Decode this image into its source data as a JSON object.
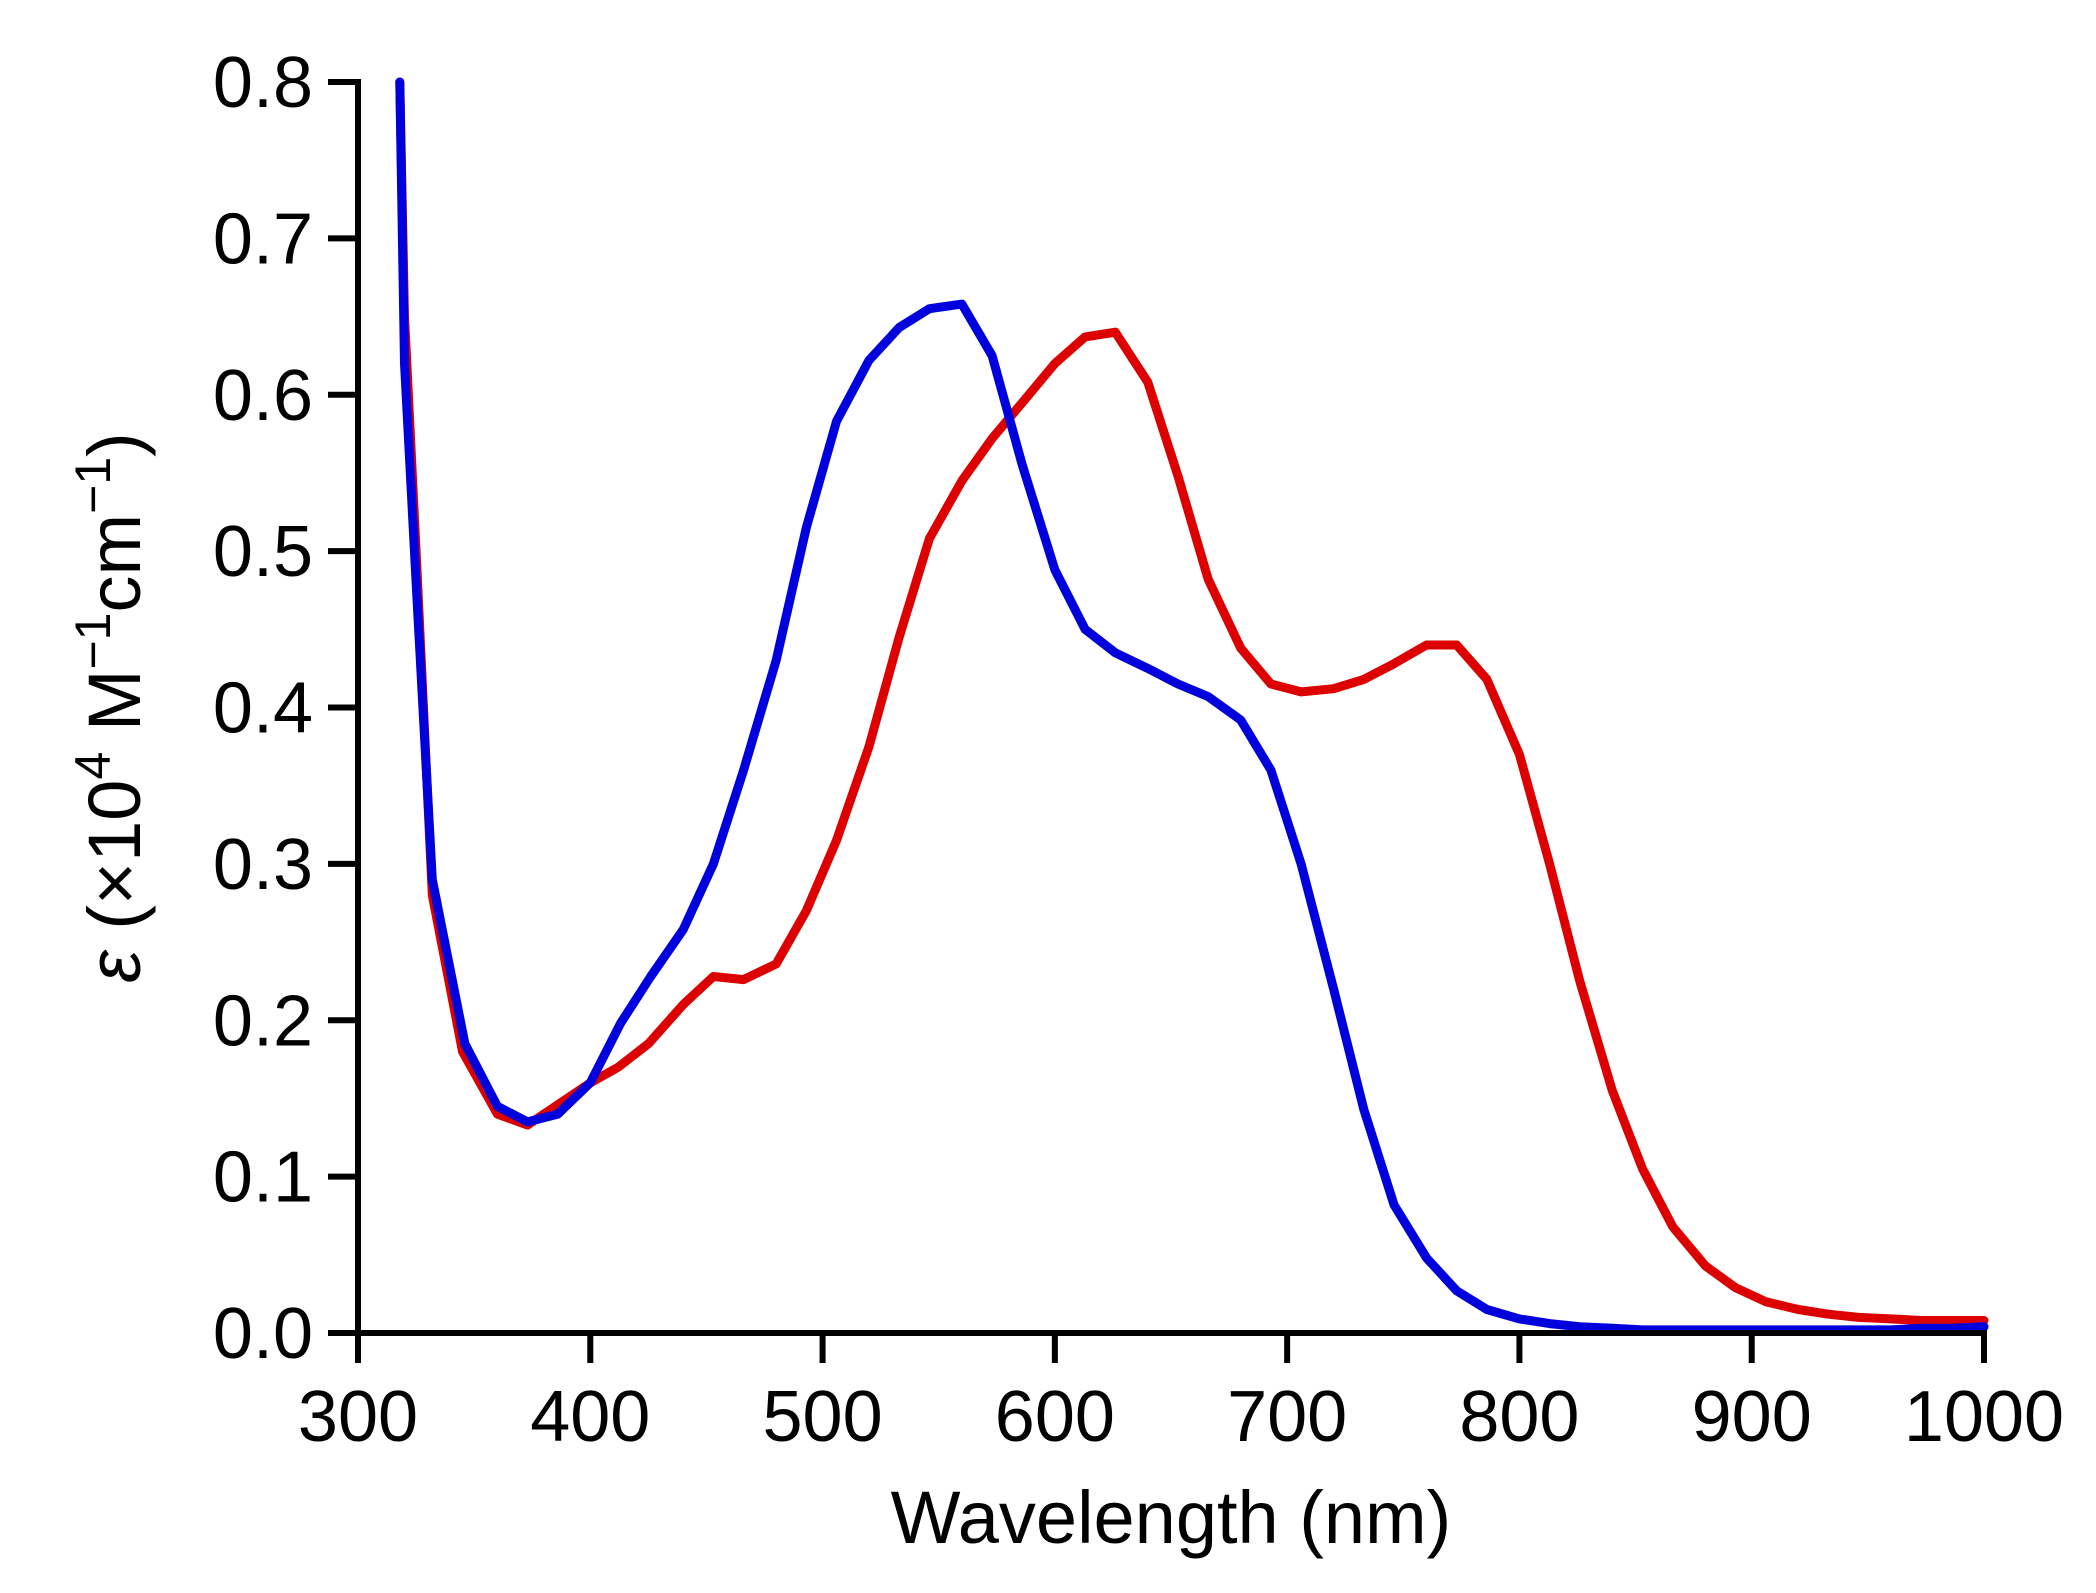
{
  "chart_data": {
    "type": "line",
    "title": "",
    "xlabel": "Wavelength (nm)",
    "ylabel": {
      "symbol": "ε",
      "open": " (×10",
      "exp1": "4",
      "unit1": " M",
      "exp2": "−1",
      "unit2": "cm",
      "exp3": "−1",
      "close": ")"
    },
    "xlim": [
      300,
      1000
    ],
    "ylim": [
      0.0,
      0.8
    ],
    "xticks": [
      "300",
      "400",
      "500",
      "600",
      "700",
      "800",
      "900",
      "1000"
    ],
    "yticks": [
      "0.0",
      "0.1",
      "0.2",
      "0.3",
      "0.4",
      "0.5",
      "0.6",
      "0.7",
      "0.8"
    ],
    "grid": false,
    "legend": "none",
    "series": [
      {
        "color": "#dd0000",
        "x": [
          318,
          320,
          325,
          332,
          345,
          360,
          373,
          380,
          400,
          412,
          425,
          440,
          453,
          466,
          480,
          493,
          506,
          520,
          533,
          546,
          560,
          573,
          586,
          600,
          613,
          626,
          640,
          653,
          666,
          680,
          693,
          706,
          720,
          733,
          746,
          760,
          773,
          786,
          800,
          813,
          826,
          840,
          853,
          866,
          880,
          893,
          906,
          920,
          933,
          946,
          960,
          973,
          986,
          1000
        ],
        "y": [
          0.8,
          0.65,
          0.5,
          0.28,
          0.18,
          0.14,
          0.133,
          0.14,
          0.16,
          0.17,
          0.185,
          0.21,
          0.228,
          0.226,
          0.236,
          0.27,
          0.315,
          0.375,
          0.445,
          0.508,
          0.545,
          0.572,
          0.595,
          0.62,
          0.637,
          0.64,
          0.608,
          0.548,
          0.482,
          0.438,
          0.415,
          0.41,
          0.412,
          0.418,
          0.428,
          0.44,
          0.44,
          0.418,
          0.37,
          0.3,
          0.225,
          0.155,
          0.105,
          0.068,
          0.043,
          0.029,
          0.02,
          0.015,
          0.012,
          0.01,
          0.009,
          0.008,
          0.008,
          0.008
        ]
      },
      {
        "color": "#0000dd",
        "x": [
          318,
          320,
          325,
          332,
          346,
          360,
          373,
          386,
          400,
          413,
          426,
          440,
          453,
          466,
          480,
          493,
          506,
          520,
          533,
          546,
          560,
          573,
          586,
          600,
          613,
          626,
          640,
          653,
          666,
          680,
          693,
          706,
          720,
          733,
          746,
          760,
          773,
          786,
          800,
          813,
          826,
          840,
          853,
          866,
          880,
          893,
          906,
          920,
          933,
          946,
          960,
          973,
          986,
          1000
        ],
        "y": [
          0.8,
          0.62,
          0.48,
          0.29,
          0.185,
          0.145,
          0.135,
          0.14,
          0.16,
          0.198,
          0.228,
          0.258,
          0.3,
          0.36,
          0.43,
          0.515,
          0.583,
          0.622,
          0.643,
          0.655,
          0.658,
          0.625,
          0.555,
          0.488,
          0.45,
          0.435,
          0.425,
          0.415,
          0.407,
          0.392,
          0.36,
          0.3,
          0.22,
          0.143,
          0.082,
          0.048,
          0.027,
          0.015,
          0.009,
          0.006,
          0.004,
          0.003,
          0.002,
          0.002,
          0.002,
          0.002,
          0.002,
          0.002,
          0.002,
          0.002,
          0.002,
          0.003,
          0.003,
          0.004
        ]
      }
    ]
  }
}
